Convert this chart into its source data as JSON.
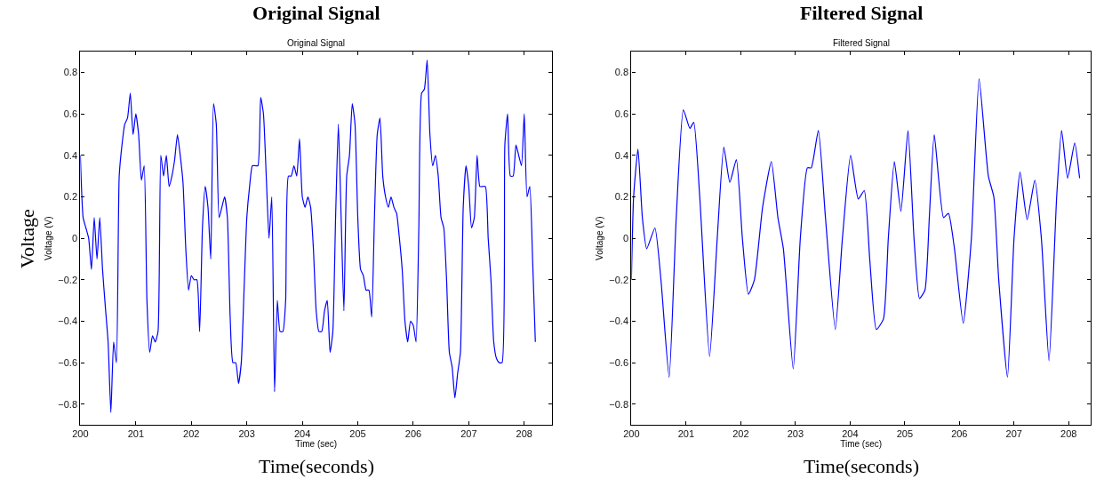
{
  "chart_data": [
    {
      "type": "line",
      "title": "Original Signal",
      "subtitle": "Original Signal",
      "xlabel": "Time (sec)",
      "ylabel": "Voltage (V)",
      "annotations": [
        "Time(seconds)",
        "Voltage"
      ],
      "color": "#0000ff",
      "line_style": "solid",
      "xlim": [
        200,
        208.5
      ],
      "ylim": [
        -0.9,
        0.9
      ],
      "xticks": [
        200,
        201,
        202,
        203,
        204,
        205,
        206,
        207,
        208
      ],
      "yticks": [
        -0.8,
        -0.6,
        -0.4,
        -0.2,
        0,
        0.2,
        0.4,
        0.6,
        0.8
      ],
      "x": [
        200.0,
        200.05,
        200.1,
        200.15,
        200.2,
        200.25,
        200.3,
        200.35,
        200.4,
        200.45,
        200.5,
        200.55,
        200.6,
        200.65,
        200.7,
        200.75,
        200.8,
        200.85,
        200.9,
        200.95,
        201.0,
        201.05,
        201.1,
        201.15,
        201.2,
        201.25,
        201.3,
        201.35,
        201.4,
        201.45,
        201.5,
        201.55,
        201.6,
        201.65,
        201.7,
        201.75,
        201.8,
        201.85,
        201.9,
        201.95,
        202.0,
        202.05,
        202.1,
        202.15,
        202.2,
        202.25,
        202.3,
        202.35,
        202.4,
        202.45,
        202.5,
        202.55,
        202.6,
        202.65,
        202.7,
        202.75,
        202.8,
        202.85,
        202.9,
        202.95,
        203.0,
        203.05,
        203.1,
        203.15,
        203.2,
        203.25,
        203.3,
        203.35,
        203.4,
        203.45,
        203.5,
        203.55,
        203.6,
        203.65,
        203.7,
        203.75,
        203.8,
        203.85,
        203.9,
        203.95,
        204.0,
        204.05,
        204.1,
        204.15,
        204.2,
        204.25,
        204.3,
        204.35,
        204.4,
        204.45,
        204.5,
        204.55,
        204.6,
        204.65,
        204.7,
        204.75,
        204.8,
        204.85,
        204.9,
        204.95,
        205.0,
        205.05,
        205.1,
        205.15,
        205.2,
        205.25,
        205.3,
        205.35,
        205.4,
        205.45,
        205.5,
        205.55,
        205.6,
        205.65,
        205.7,
        205.75,
        205.8,
        205.85,
        205.9,
        205.95,
        206.0,
        206.05,
        206.1,
        206.15,
        206.2,
        206.25,
        206.3,
        206.35,
        206.4,
        206.45,
        206.5,
        206.55,
        206.6,
        206.65,
        206.7,
        206.75,
        206.8,
        206.85,
        206.9,
        206.95,
        207.0,
        207.05,
        207.1,
        207.15,
        207.2,
        207.25,
        207.3,
        207.35,
        207.4,
        207.45,
        207.5,
        207.55,
        207.6,
        207.65,
        207.7,
        207.75,
        207.8,
        207.85,
        207.9,
        207.95,
        208.0,
        208.05,
        208.1,
        208.15,
        208.2
      ],
      "values": [
        0.4,
        0.1,
        0.05,
        0.0,
        -0.15,
        0.1,
        -0.1,
        0.1,
        -0.15,
        -0.33,
        -0.5,
        -0.84,
        -0.5,
        -0.6,
        0.3,
        0.45,
        0.55,
        0.58,
        0.7,
        0.5,
        0.6,
        0.5,
        0.28,
        0.35,
        -0.3,
        -0.55,
        -0.47,
        -0.5,
        -0.45,
        0.4,
        0.3,
        0.4,
        0.25,
        0.3,
        0.38,
        0.5,
        0.4,
        0.27,
        -0.05,
        -0.25,
        -0.18,
        -0.2,
        -0.2,
        -0.45,
        0.05,
        0.25,
        0.15,
        -0.1,
        0.65,
        0.55,
        0.1,
        0.15,
        0.2,
        0.1,
        -0.38,
        -0.6,
        -0.6,
        -0.7,
        -0.6,
        -0.25,
        0.1,
        0.25,
        0.35,
        0.35,
        0.35,
        0.68,
        0.6,
        0.3,
        0.0,
        0.2,
        -0.74,
        -0.3,
        -0.45,
        -0.45,
        -0.3,
        0.3,
        0.3,
        0.35,
        0.3,
        0.48,
        0.2,
        0.15,
        0.2,
        0.15,
        -0.05,
        -0.35,
        -0.45,
        -0.45,
        -0.35,
        -0.3,
        -0.55,
        -0.45,
        0.1,
        0.55,
        0.1,
        -0.35,
        0.3,
        0.4,
        0.65,
        0.55,
        0.1,
        -0.15,
        -0.18,
        -0.25,
        -0.25,
        -0.38,
        0.1,
        0.5,
        0.58,
        0.3,
        0.2,
        0.15,
        0.2,
        0.15,
        0.12,
        0.0,
        -0.15,
        -0.4,
        -0.5,
        -0.4,
        -0.42,
        -0.5,
        0.05,
        0.7,
        0.72,
        0.86,
        0.5,
        0.35,
        0.4,
        0.3,
        0.1,
        0.05,
        -0.2,
        -0.55,
        -0.62,
        -0.77,
        -0.65,
        -0.55,
        0.15,
        0.35,
        0.25,
        0.05,
        0.1,
        0.4,
        0.25,
        0.25,
        0.25,
        0.0,
        -0.2,
        -0.5,
        -0.58,
        -0.6,
        -0.6,
        0.45,
        0.6,
        0.3,
        0.3,
        0.45,
        0.4,
        0.35,
        0.6,
        0.2,
        0.25,
        -0.1,
        -0.5
      ]
    },
    {
      "type": "line",
      "title": "Filtered Signal",
      "subtitle": "Filtered Signal",
      "xlabel": "Time (sec)",
      "ylabel": "Voltage (V)",
      "annotations": [
        "Time(seconds)"
      ],
      "color": "#0000ff",
      "line_style": "solid",
      "xlim": [
        200,
        208.4
      ],
      "ylim": [
        -0.9,
        0.9
      ],
      "xticks": [
        200,
        201,
        202,
        203,
        204,
        205,
        206,
        207,
        208
      ],
      "yticks": [
        -0.8,
        -0.6,
        -0.4,
        -0.2,
        0,
        0.2,
        0.4,
        0.6,
        0.8
      ],
      "x": [
        200.0,
        200.04,
        200.12,
        200.2,
        200.28,
        200.43,
        200.54,
        200.69,
        200.82,
        200.95,
        201.07,
        201.14,
        201.25,
        201.43,
        201.57,
        201.69,
        201.8,
        201.92,
        202.03,
        202.14,
        202.25,
        202.4,
        202.56,
        202.68,
        202.78,
        202.96,
        203.09,
        203.22,
        203.29,
        203.42,
        203.55,
        203.73,
        203.86,
        204.01,
        204.15,
        204.26,
        204.36,
        204.48,
        204.61,
        204.7,
        204.81,
        204.93,
        205.06,
        205.17,
        205.27,
        205.37,
        205.45,
        205.54,
        205.71,
        205.8,
        205.91,
        206.07,
        206.22,
        206.36,
        206.53,
        206.63,
        206.72,
        206.88,
        207.0,
        207.11,
        207.24,
        207.38,
        207.5,
        207.64,
        207.78,
        207.87,
        207.98,
        208.11,
        208.2
      ],
      "values": [
        -0.2,
        0.2,
        0.43,
        0.1,
        -0.05,
        0.05,
        -0.2,
        -0.67,
        0.1,
        0.62,
        0.53,
        0.56,
        0.2,
        -0.57,
        0.0,
        0.44,
        0.27,
        0.38,
        0.0,
        -0.27,
        -0.2,
        0.15,
        0.37,
        0.1,
        -0.05,
        -0.63,
        0.0,
        0.34,
        0.34,
        0.52,
        0.1,
        -0.44,
        0.0,
        0.4,
        0.19,
        0.23,
        -0.1,
        -0.44,
        -0.39,
        0.0,
        0.37,
        0.13,
        0.52,
        0.0,
        -0.29,
        -0.25,
        0.1,
        0.5,
        0.1,
        0.12,
        -0.05,
        -0.41,
        0.0,
        0.77,
        0.3,
        0.2,
        -0.2,
        -0.67,
        0.0,
        0.32,
        0.09,
        0.28,
        0.0,
        -0.59,
        0.2,
        0.52,
        0.29,
        0.46,
        0.29
      ]
    }
  ]
}
